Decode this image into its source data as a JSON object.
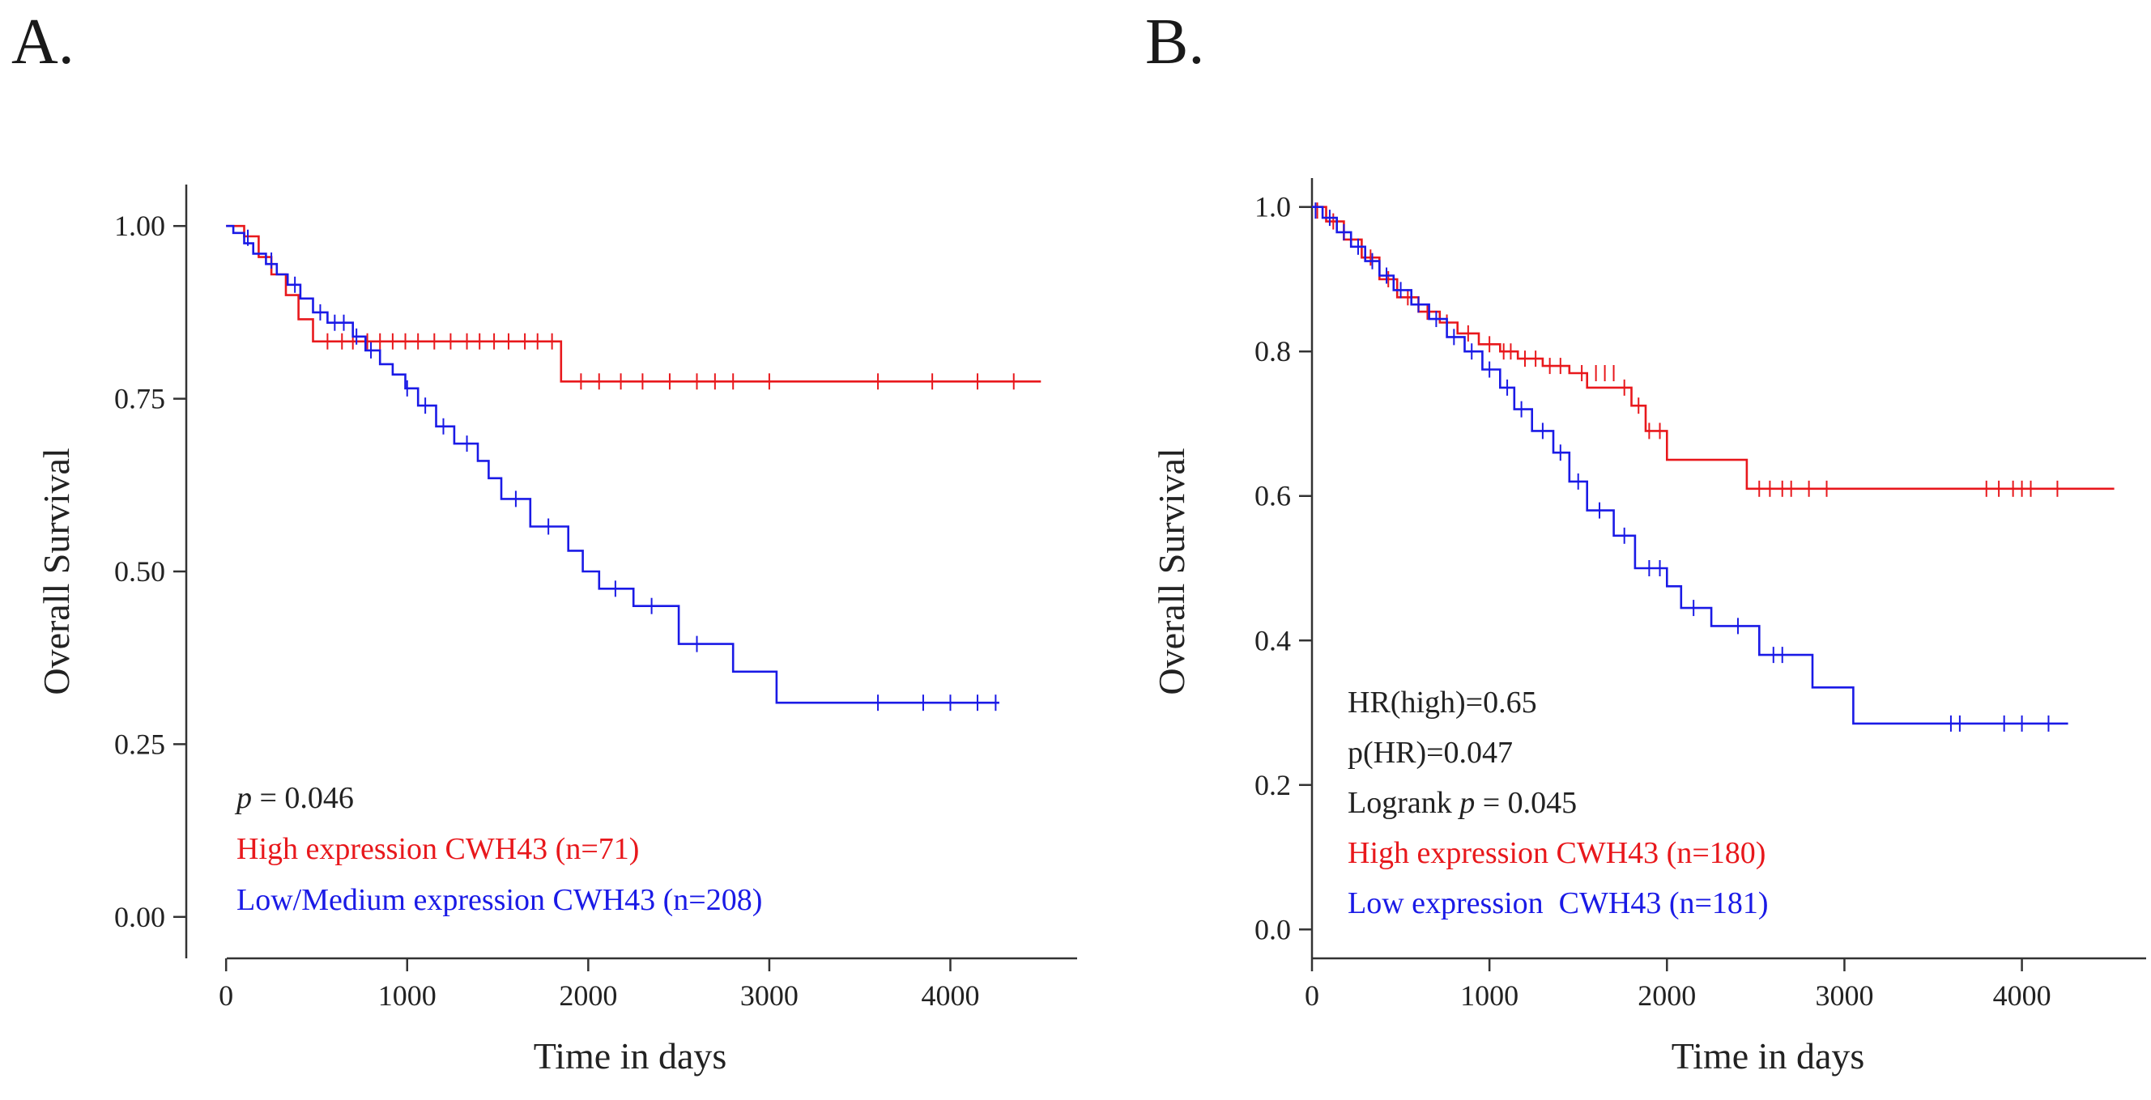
{
  "figure": {
    "panels": [
      "A.",
      "B."
    ]
  },
  "colors": {
    "high": "#e8181c",
    "low": "#1a1ae6",
    "axis": "#333333",
    "text": "#222222"
  },
  "chart_data": [
    {
      "type": "line",
      "subtype": "kaplan-meier",
      "panel_label": "A.",
      "xlabel": "Time in days",
      "ylabel": "Overall Survival",
      "xlim": [
        -220,
        4700
      ],
      "ylim": [
        -0.06,
        1.06
      ],
      "x_ticks": [
        0,
        1000,
        2000,
        3000,
        4000
      ],
      "x_tick_labels": [
        "0",
        "1000",
        "2000",
        "3000",
        "4000"
      ],
      "y_ticks": [
        0.0,
        0.25,
        0.5,
        0.75,
        1.0
      ],
      "y_tick_labels": [
        "0.00",
        "0.25",
        "0.50",
        "0.75",
        "1.00"
      ],
      "annotations": [
        {
          "parts": [
            {
              "text": "p",
              "italic": true
            },
            {
              "text": " = 0.046",
              "italic": false
            }
          ],
          "color": "text"
        },
        {
          "parts": [
            {
              "text": "High expression CWH43 (n=71)",
              "italic": false
            }
          ],
          "color": "high"
        },
        {
          "parts": [
            {
              "text": "Low/Medium expression CWH43 (n=208)",
              "italic": false
            }
          ],
          "color": "blue"
        }
      ],
      "series": [
        {
          "name": "High expression CWH43 (n=71)",
          "color": "high",
          "x": [
            0,
            100,
            100,
            180,
            180,
            250,
            250,
            330,
            330,
            400,
            400,
            480,
            480,
            1850,
            1850,
            4500
          ],
          "y": [
            1.0,
            1.0,
            0.985,
            0.985,
            0.955,
            0.955,
            0.93,
            0.93,
            0.9,
            0.9,
            0.865,
            0.865,
            0.833,
            0.833,
            0.775,
            0.775
          ],
          "censor_x": [
            560,
            640,
            700,
            780,
            850,
            920,
            990,
            1060,
            1150,
            1240,
            1330,
            1400,
            1480,
            1560,
            1650,
            1720,
            1800,
            1960,
            2060,
            2180,
            2300,
            2450,
            2600,
            2700,
            2800,
            3000,
            3600,
            3900,
            4150,
            4350
          ],
          "censor_y": [
            0.833,
            0.833,
            0.833,
            0.833,
            0.833,
            0.833,
            0.833,
            0.833,
            0.833,
            0.833,
            0.833,
            0.833,
            0.833,
            0.833,
            0.833,
            0.833,
            0.833,
            0.775,
            0.775,
            0.775,
            0.775,
            0.775,
            0.775,
            0.775,
            0.775,
            0.775,
            0.775,
            0.775,
            0.775,
            0.775
          ]
        },
        {
          "name": "Low/Medium expression CWH43 (n=208)",
          "color": "low",
          "x": [
            0,
            40,
            40,
            100,
            100,
            150,
            150,
            220,
            220,
            280,
            280,
            340,
            340,
            410,
            410,
            480,
            480,
            560,
            560,
            700,
            700,
            770,
            770,
            850,
            850,
            920,
            920,
            990,
            990,
            1060,
            1060,
            1160,
            1160,
            1260,
            1260,
            1390,
            1390,
            1450,
            1450,
            1520,
            1520,
            1680,
            1680,
            1890,
            1890,
            1970,
            1970,
            2060,
            2060,
            2250,
            2250,
            2500,
            2500,
            2800,
            2800,
            3040,
            3040,
            4270
          ],
          "y": [
            1.0,
            1.0,
            0.99,
            0.99,
            0.975,
            0.975,
            0.96,
            0.96,
            0.945,
            0.945,
            0.93,
            0.93,
            0.915,
            0.915,
            0.895,
            0.895,
            0.875,
            0.875,
            0.86,
            0.86,
            0.84,
            0.84,
            0.82,
            0.82,
            0.8,
            0.8,
            0.785,
            0.785,
            0.765,
            0.765,
            0.74,
            0.74,
            0.71,
            0.71,
            0.685,
            0.685,
            0.66,
            0.66,
            0.635,
            0.635,
            0.605,
            0.605,
            0.565,
            0.565,
            0.53,
            0.53,
            0.5,
            0.5,
            0.475,
            0.475,
            0.45,
            0.45,
            0.395,
            0.395,
            0.355,
            0.355,
            0.31,
            0.31
          ],
          "censor_x": [
            120,
            250,
            380,
            520,
            600,
            650,
            720,
            800,
            1000,
            1100,
            1200,
            1330,
            1600,
            1780,
            2150,
            2350,
            2600,
            3600,
            3850,
            4000,
            4150,
            4250
          ],
          "censor_y": [
            0.983,
            0.95,
            0.915,
            0.875,
            0.86,
            0.86,
            0.84,
            0.82,
            0.765,
            0.74,
            0.71,
            0.685,
            0.605,
            0.565,
            0.475,
            0.45,
            0.395,
            0.31,
            0.31,
            0.31,
            0.31,
            0.31
          ]
        }
      ]
    },
    {
      "type": "line",
      "subtype": "kaplan-meier",
      "panel_label": "B.",
      "xlabel": "Time in days",
      "ylabel": "Overall Survival",
      "xlim": [
        0,
        4700
      ],
      "ylim": [
        -0.04,
        1.04
      ],
      "x_ticks": [
        0,
        1000,
        2000,
        3000,
        4000
      ],
      "x_tick_labels": [
        "0",
        "1000",
        "2000",
        "3000",
        "4000"
      ],
      "y_ticks": [
        0.0,
        0.2,
        0.4,
        0.6,
        0.8,
        1.0
      ],
      "y_tick_labels": [
        "0.0",
        "0.2",
        "0.4",
        "0.6",
        "0.8",
        "1.0"
      ],
      "annotations": [
        {
          "parts": [
            {
              "text": "HR(high)=0.65",
              "italic": false
            }
          ],
          "color": "text"
        },
        {
          "parts": [
            {
              "text": "p(HR)=0.047",
              "italic": false
            }
          ],
          "color": "text"
        },
        {
          "parts": [
            {
              "text": "Logrank ",
              "italic": false
            },
            {
              "text": "p",
              "italic": true
            },
            {
              "text": " = 0.045",
              "italic": false
            }
          ],
          "color": "text"
        },
        {
          "parts": [
            {
              "text": "High expression CWH43 (n=180)",
              "italic": false
            }
          ],
          "color": "high"
        },
        {
          "parts": [
            {
              "text": "Low expression  CWH43 (n=181)",
              "italic": false
            }
          ],
          "color": "low"
        }
      ],
      "series": [
        {
          "name": "High expression CWH43 (n=180)",
          "color": "high",
          "x": [
            0,
            80,
            80,
            180,
            180,
            280,
            280,
            380,
            380,
            480,
            480,
            600,
            600,
            720,
            720,
            820,
            820,
            940,
            940,
            1060,
            1060,
            1160,
            1160,
            1300,
            1300,
            1450,
            1450,
            1550,
            1550,
            1800,
            1800,
            1880,
            1880,
            2000,
            2000,
            2450,
            2450,
            4520
          ],
          "y": [
            1.0,
            1.0,
            0.98,
            0.98,
            0.955,
            0.955,
            0.93,
            0.93,
            0.9,
            0.9,
            0.875,
            0.875,
            0.855,
            0.855,
            0.84,
            0.84,
            0.825,
            0.825,
            0.81,
            0.81,
            0.8,
            0.8,
            0.79,
            0.79,
            0.78,
            0.78,
            0.77,
            0.77,
            0.75,
            0.75,
            0.725,
            0.725,
            0.69,
            0.69,
            0.65,
            0.65,
            0.61,
            0.61
          ],
          "censor_x": [
            30,
            120,
            220,
            330,
            430,
            540,
            650,
            760,
            880,
            1000,
            1080,
            1120,
            1200,
            1260,
            1340,
            1400,
            1520,
            1600,
            1650,
            1700,
            1760,
            1840,
            1900,
            1960,
            2520,
            2580,
            2650,
            2700,
            2800,
            2900,
            3800,
            3870,
            3950,
            4000,
            4050,
            4200
          ],
          "censor_y": [
            0.995,
            0.98,
            0.955,
            0.93,
            0.9,
            0.875,
            0.855,
            0.84,
            0.825,
            0.81,
            0.8,
            0.8,
            0.79,
            0.79,
            0.78,
            0.78,
            0.77,
            0.77,
            0.77,
            0.77,
            0.75,
            0.725,
            0.69,
            0.69,
            0.61,
            0.61,
            0.61,
            0.61,
            0.61,
            0.61,
            0.61,
            0.61,
            0.61,
            0.61,
            0.61,
            0.61
          ]
        },
        {
          "name": "Low expression  CWH43 (n=181)",
          "color": "low",
          "x": [
            0,
            60,
            60,
            140,
            140,
            220,
            220,
            300,
            300,
            380,
            380,
            460,
            460,
            560,
            560,
            660,
            660,
            760,
            760,
            860,
            860,
            960,
            960,
            1060,
            1060,
            1140,
            1140,
            1240,
            1240,
            1360,
            1360,
            1450,
            1450,
            1550,
            1550,
            1700,
            1700,
            1820,
            1820,
            2000,
            2000,
            2080,
            2080,
            2250,
            2250,
            2520,
            2520,
            2820,
            2820,
            3050,
            3050,
            4260
          ],
          "y": [
            1.0,
            1.0,
            0.985,
            0.985,
            0.965,
            0.965,
            0.945,
            0.945,
            0.925,
            0.925,
            0.905,
            0.905,
            0.885,
            0.885,
            0.865,
            0.865,
            0.845,
            0.845,
            0.82,
            0.82,
            0.8,
            0.8,
            0.775,
            0.775,
            0.75,
            0.75,
            0.72,
            0.72,
            0.69,
            0.69,
            0.66,
            0.66,
            0.62,
            0.62,
            0.58,
            0.58,
            0.545,
            0.545,
            0.5,
            0.5,
            0.475,
            0.475,
            0.445,
            0.445,
            0.42,
            0.42,
            0.38,
            0.38,
            0.335,
            0.335,
            0.285,
            0.285
          ],
          "censor_x": [
            20,
            100,
            180,
            260,
            340,
            420,
            500,
            600,
            700,
            800,
            900,
            1000,
            1100,
            1180,
            1300,
            1400,
            1500,
            1620,
            1760,
            1900,
            1960,
            2150,
            2400,
            2600,
            2650,
            3600,
            3650,
            3900,
            4000,
            4150
          ],
          "censor_y": [
            0.995,
            0.985,
            0.965,
            0.945,
            0.925,
            0.905,
            0.885,
            0.865,
            0.845,
            0.82,
            0.8,
            0.775,
            0.75,
            0.72,
            0.69,
            0.66,
            0.62,
            0.58,
            0.545,
            0.5,
            0.5,
            0.445,
            0.42,
            0.38,
            0.38,
            0.285,
            0.285,
            0.285,
            0.285,
            0.285
          ]
        }
      ]
    }
  ]
}
